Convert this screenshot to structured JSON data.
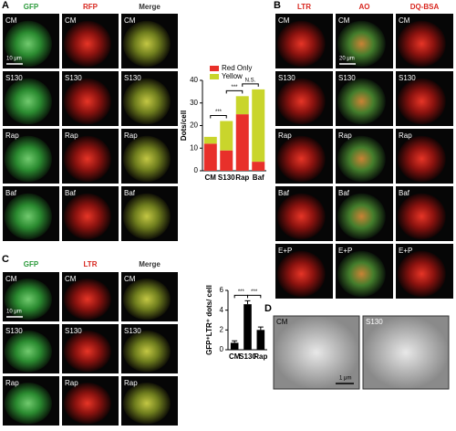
{
  "panels": {
    "A": {
      "label": "A",
      "columns": [
        "GFP",
        "RFP",
        "Merge"
      ],
      "rows": [
        "CM",
        "S130",
        "Rap",
        "Baf"
      ],
      "scale_bar": "10 μm"
    },
    "B": {
      "label": "B",
      "columns": [
        "LTR",
        "AO",
        "DQ-BSA"
      ],
      "rows": [
        "CM",
        "S130",
        "Rap",
        "Baf",
        "E+P"
      ],
      "scale_bar": "20 μm"
    },
    "C": {
      "label": "C",
      "columns": [
        "GFP",
        "LTR",
        "Merge"
      ],
      "rows": [
        "CM",
        "S130",
        "Rap"
      ],
      "scale_bar": "10 μm"
    },
    "D": {
      "label": "D",
      "images": [
        "CM",
        "S130"
      ],
      "scale_bar": "1 μm"
    }
  },
  "chart_data": [
    {
      "type": "stacked_bar",
      "y_label": "Dots/cell",
      "categories": [
        "CM",
        "S130",
        "Rap",
        "Baf"
      ],
      "series": [
        {
          "name": "Red Only",
          "color": "#e8302a",
          "values": [
            12,
            9,
            25,
            4
          ]
        },
        {
          "name": "Yellow",
          "color": "#c9d52c",
          "values": [
            3,
            13,
            8,
            32
          ]
        }
      ],
      "ylim": [
        0,
        40
      ],
      "yticks": [
        0,
        10,
        20,
        30,
        40
      ],
      "annotations": [
        "***",
        "***",
        "N.S."
      ]
    },
    {
      "type": "bar",
      "y_label": "GFP⁺LTR⁺ dots/ cell",
      "categories": [
        "CM",
        "S130",
        "Rap"
      ],
      "values": [
        0.7,
        4.6,
        2.0
      ],
      "errors": [
        0.2,
        0.35,
        0.3
      ],
      "color": "#000000",
      "ylim": [
        0,
        6
      ],
      "yticks": [
        0,
        2,
        4,
        6
      ],
      "annotations": [
        "***",
        "***"
      ]
    }
  ]
}
